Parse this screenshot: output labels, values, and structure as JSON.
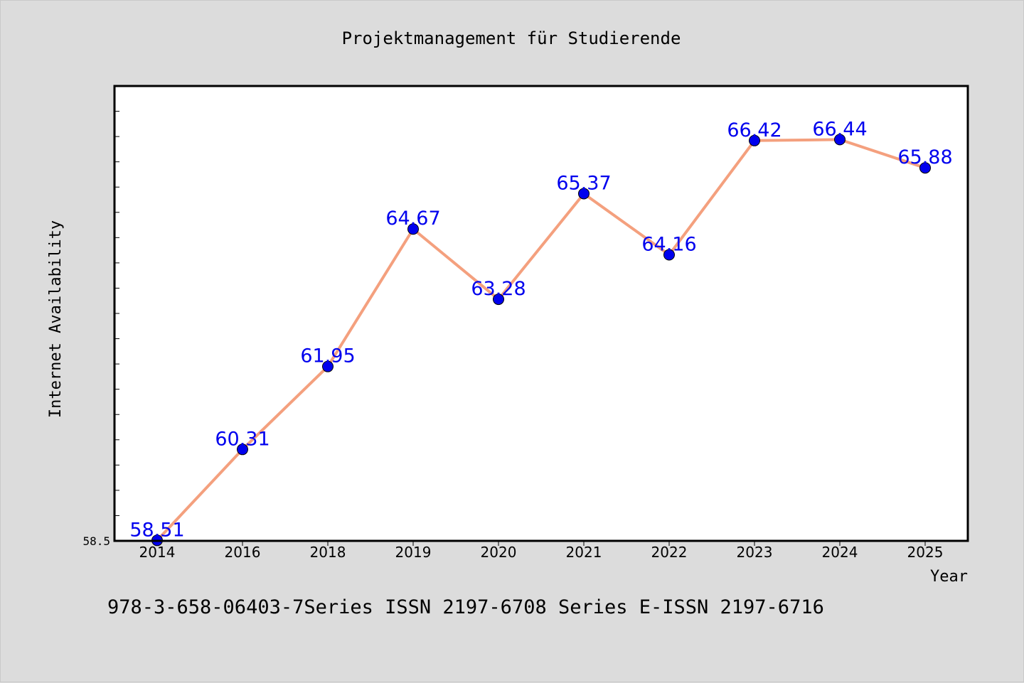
{
  "chart_data": {
    "type": "line",
    "title": "Projektmanagement für Studierende",
    "xlabel": "Year",
    "ylabel": "Internet Availability",
    "categories": [
      "2014",
      "2016",
      "2018",
      "2019",
      "2020",
      "2021",
      "2022",
      "2023",
      "2024",
      "2025"
    ],
    "series": [
      {
        "values": [
          58.51,
          60.31,
          61.95,
          64.67,
          63.28,
          65.37,
          64.16,
          66.42,
          66.44,
          65.88
        ],
        "data_labels": [
          "58.51",
          "60.31",
          "61.95",
          "64.67",
          "63.28",
          "65.37",
          "64.16",
          "66.42",
          "66.44",
          "65.88"
        ],
        "line_color": "#f4a07e",
        "marker_color": "#0000ee",
        "label_color": "#0000ee"
      }
    ],
    "ylim": [
      58.5,
      67.5
    ],
    "y_tick_labels": [
      "58.5"
    ],
    "grid": false,
    "legend": "none"
  },
  "footer_text": "978-3-658-06403-7Series ISSN 2197-6708 Series E-ISSN 2197-6716",
  "colors": {
    "background": "#dcdcdc",
    "plot_background": "#ffffff",
    "axis": "#000000"
  }
}
